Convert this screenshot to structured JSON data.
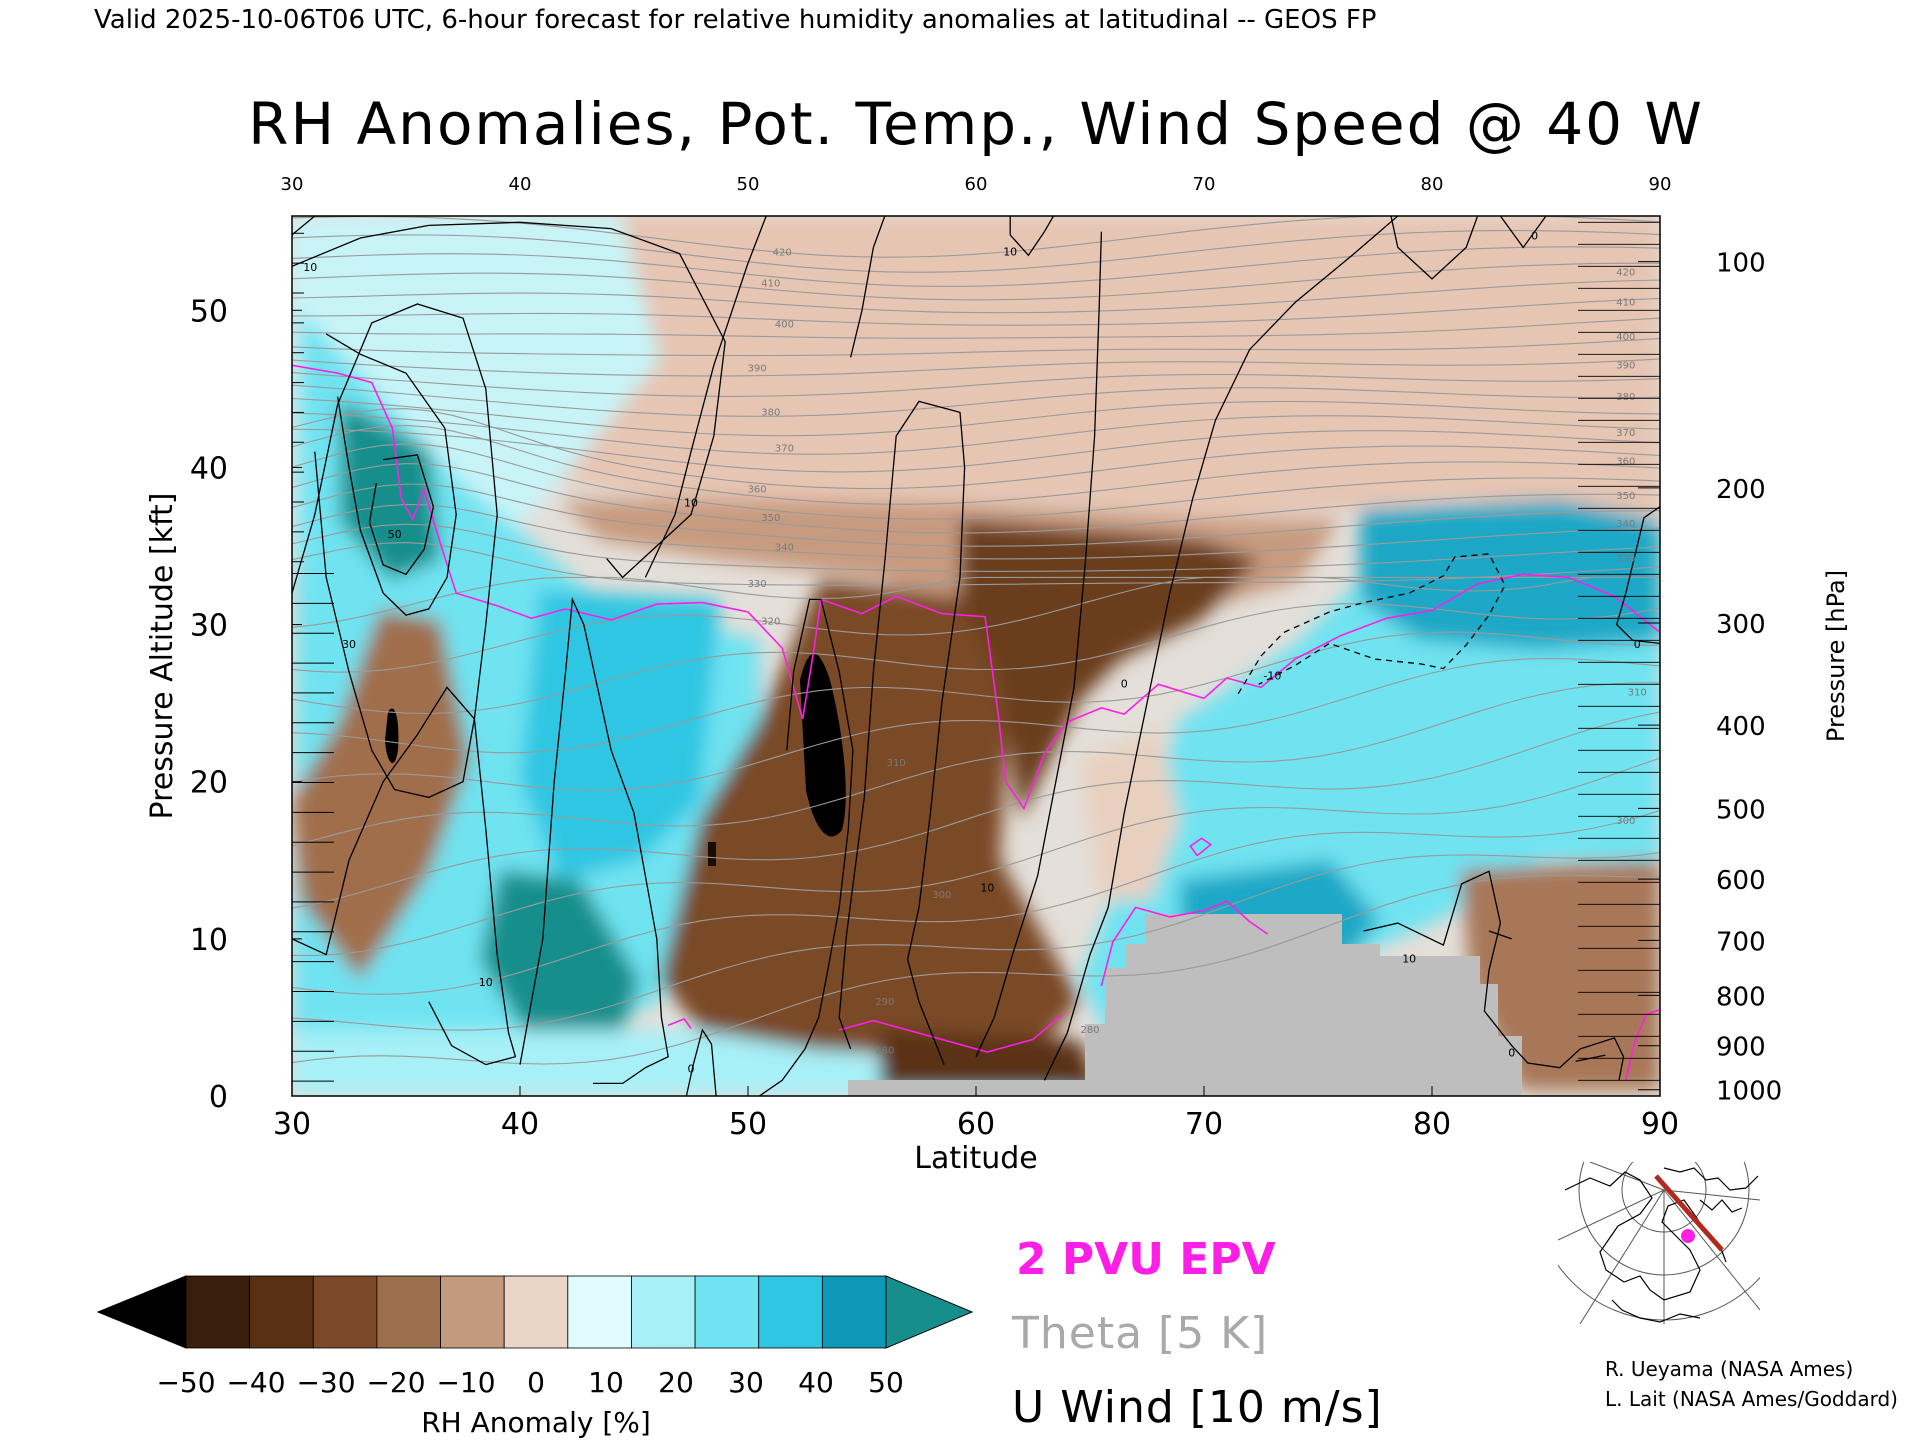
{
  "header": {
    "valid_line": "Valid 2025-10-06T06 UTC, 6-hour forecast for relative humidity anomalies at latitudinal -- GEOS FP"
  },
  "chart_data": {
    "type": "heatmap",
    "title": "RH Anomalies, Pot. Temp., Wind Speed @ 40 W",
    "xlabel": "Latitude",
    "ylabel": "Pressure Altitude [kft]",
    "y2label": "Pressure [hPa]",
    "xlim": [
      30,
      90
    ],
    "ylim": [
      0,
      56
    ],
    "x_ticks": [
      "30",
      "40",
      "50",
      "60",
      "70",
      "80",
      "90"
    ],
    "top_x_ticks": [
      "30",
      "40",
      "50",
      "60",
      "70",
      "80",
      "90"
    ],
    "y_ticks": [
      "0",
      "10",
      "20",
      "30",
      "40",
      "50"
    ],
    "y_tick_values": [
      0,
      10,
      20,
      30,
      40,
      50
    ],
    "pressure_ticks": [
      {
        "label": "100",
        "kft": 53.1
      },
      {
        "label": "200",
        "kft": 38.7
      },
      {
        "label": "300",
        "kft": 30.1
      },
      {
        "label": "400",
        "kft": 23.6
      },
      {
        "label": "500",
        "kft": 18.3
      },
      {
        "label": "600",
        "kft": 13.8
      },
      {
        "label": "700",
        "kft": 9.9
      },
      {
        "label": "800",
        "kft": 6.4
      },
      {
        "label": "900",
        "kft": 3.2
      },
      {
        "label": "1000",
        "kft": 0.4
      }
    ],
    "theta_labels": [
      {
        "label": "420",
        "x": 51.5,
        "kft": 53.5
      },
      {
        "label": "410",
        "x": 51.0,
        "kft": 51.5
      },
      {
        "label": "400",
        "x": 51.6,
        "kft": 48.9
      },
      {
        "label": "390",
        "x": 50.4,
        "kft": 46.1
      },
      {
        "label": "380",
        "x": 51.0,
        "kft": 43.3
      },
      {
        "label": "370",
        "x": 51.6,
        "kft": 41.0
      },
      {
        "label": "360",
        "x": 50.4,
        "kft": 38.4
      },
      {
        "label": "350",
        "x": 51.0,
        "kft": 36.6
      },
      {
        "label": "340",
        "x": 51.6,
        "kft": 34.7
      },
      {
        "label": "330",
        "x": 50.4,
        "kft": 32.4
      },
      {
        "label": "320",
        "x": 51.0,
        "kft": 30.0
      },
      {
        "label": "310",
        "x": 56.5,
        "kft": 21.0
      },
      {
        "label": "300",
        "x": 58.5,
        "kft": 12.6
      },
      {
        "label": "290",
        "x": 56.0,
        "kft": 5.8
      },
      {
        "label": "280",
        "x": 56.0,
        "kft": 2.7
      },
      {
        "label": "280",
        "x": 65.0,
        "kft": 4.0
      },
      {
        "label": "420",
        "x": 88.5,
        "kft": 52.2
      },
      {
        "label": "410",
        "x": 88.5,
        "kft": 50.3
      },
      {
        "label": "400",
        "x": 88.5,
        "kft": 48.1
      },
      {
        "label": "390",
        "x": 88.5,
        "kft": 46.3
      },
      {
        "label": "380",
        "x": 88.5,
        "kft": 44.3
      },
      {
        "label": "370",
        "x": 88.5,
        "kft": 42.0
      },
      {
        "label": "360",
        "x": 88.5,
        "kft": 40.2
      },
      {
        "label": "350",
        "x": 88.5,
        "kft": 38.0
      },
      {
        "label": "340",
        "x": 88.5,
        "kft": 36.2
      },
      {
        "label": "330",
        "x": 88.5,
        "kft": 34.0
      },
      {
        "label": "310",
        "x": 89.0,
        "kft": 25.5
      },
      {
        "label": "300",
        "x": 88.5,
        "kft": 17.3
      }
    ],
    "wind_labels": [
      {
        "label": "10",
        "x": 30.8,
        "kft": 52.5
      },
      {
        "label": "30",
        "x": 32.5,
        "kft": 28.5
      },
      {
        "label": "50",
        "x": 34.5,
        "kft": 35.5
      },
      {
        "label": "10",
        "x": 47.5,
        "kft": 37.5
      },
      {
        "label": "10",
        "x": 61.5,
        "kft": 53.5
      },
      {
        "label": "10",
        "x": 38.5,
        "kft": 7.0
      },
      {
        "label": "0",
        "x": 47.5,
        "kft": 1.5
      },
      {
        "label": "10",
        "x": 60.5,
        "kft": 13.0
      },
      {
        "label": "0",
        "x": 66.5,
        "kft": 26.0
      },
      {
        "label": "-10",
        "x": 73.0,
        "kft": 26.5
      },
      {
        "label": "10",
        "x": 79.0,
        "kft": 8.5
      },
      {
        "label": "0",
        "x": 84.5,
        "kft": 54.5
      },
      {
        "label": "0",
        "x": 89.0,
        "kft": 28.5
      },
      {
        "label": "0",
        "x": 83.5,
        "kft": 2.5
      }
    ],
    "colorbar": {
      "label": "RH Anomaly [%]",
      "ticks": [
        "−50",
        "−40",
        "−30",
        "−20",
        "−10",
        "0",
        "10",
        "20",
        "30",
        "40",
        "50"
      ],
      "colors": [
        "#3a1e0c",
        "#5a3014",
        "#7a4a28",
        "#9d6e4c",
        "#c49a7e",
        "#ead5c7",
        "#dffbfd",
        "#a7f0f7",
        "#6fe3f1",
        "#2ec6e2",
        "#0e98b8"
      ],
      "under_color": "#000000",
      "over_color": "#168f8c"
    },
    "legend": [
      {
        "label": "2 PVU EPV",
        "color": "#ff1ee6"
      },
      {
        "label": "Theta [5 K]",
        "color": "#a9a9a9"
      },
      {
        "label": "U Wind [10 m/s]",
        "color": "#000000"
      }
    ],
    "colors": {
      "epv": "#ff1ee6",
      "theta": "#9a9a9a",
      "wind": "#000000",
      "terrain": "#bebebe"
    }
  },
  "credits": {
    "line1": "R. Ueyama (NASA Ames)",
    "line2": "L. Lait (NASA Ames/Goddard)"
  },
  "inset_map": {
    "icon": "polar-map-icon",
    "track_color": "#b22a1d",
    "marker_color": "#ff1ee6"
  }
}
